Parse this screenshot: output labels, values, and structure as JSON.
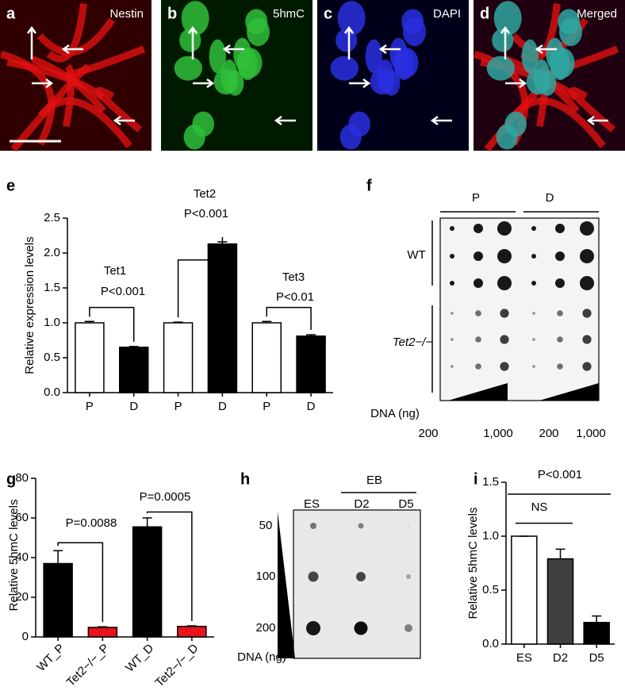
{
  "images": [
    {
      "letter": "a",
      "label": "Nestin"
    },
    {
      "letter": "b",
      "label": "5hmC"
    },
    {
      "letter": "c",
      "label": "DAPI"
    },
    {
      "letter": "d",
      "label": "Merged"
    }
  ],
  "blots": {
    "f": {
      "letter": "f",
      "groups": [
        "P",
        "D"
      ],
      "rows": [
        "WT",
        "Tet2−/−"
      ],
      "axis_label": "DNA (ng)",
      "amounts": [
        "200",
        "1,000",
        "200",
        "1,000"
      ]
    },
    "h": {
      "letter": "h",
      "group": "EB",
      "lanes": [
        "ES",
        "D2",
        "D5"
      ],
      "amounts": [
        "50",
        "100",
        "200"
      ],
      "axis_label": "DNA (ng)"
    }
  },
  "chart_data": [
    {
      "type": "bar",
      "panel": "e",
      "ylabel": "Relative expression levels",
      "categories": [
        "P",
        "D",
        "P",
        "D",
        "P",
        "D"
      ],
      "values": [
        1.0,
        0.65,
        1.0,
        2.13,
        1.0,
        0.81
      ],
      "errors": [
        0.02,
        0.01,
        0.01,
        0.03,
        0.02,
        0.02
      ],
      "colors": [
        "#ffffff",
        "#000000",
        "#ffffff",
        "#000000",
        "#ffffff",
        "#000000"
      ],
      "ylim": [
        0,
        2.5
      ],
      "yticks": [
        {
          "value": 0,
          "label": "0.0"
        },
        0.5,
        {
          "value": 1,
          "label": "1.0"
        },
        1.5,
        {
          "value": 2,
          "label": "2.0"
        },
        2.5
      ],
      "annotations": [
        {
          "title": "Tet1",
          "text": "P<0.001"
        },
        {
          "title": "Tet2",
          "text": "P<0.001"
        },
        {
          "title": "Tet3",
          "text": "P<0.01"
        }
      ]
    },
    {
      "type": "bar",
      "panel": "g",
      "ylabel": "Relative 5hmC levels",
      "categories": [
        "WT_P",
        "Tet2−/−_P",
        "WT_D",
        "Tet2−/−_D"
      ],
      "values": [
        37,
        4.8,
        55.5,
        5.3
      ],
      "errors": [
        6.5,
        0.3,
        4.5,
        0.3
      ],
      "colors": [
        "#000000",
        "#e8141b",
        "#000000",
        "#e8141b"
      ],
      "ylim": [
        0,
        80
      ],
      "yticks": [
        0,
        20,
        40,
        60,
        80
      ],
      "annotations": [
        {
          "text": "P=0.0088"
        },
        {
          "text": "P=0.0005"
        }
      ]
    },
    {
      "type": "bar",
      "panel": "i",
      "ylabel": "Relative 5hmC levels",
      "categories": [
        "ES",
        "D2",
        "D5"
      ],
      "values": [
        1.0,
        0.79,
        0.2
      ],
      "errors": [
        0,
        0.09,
        0.06
      ],
      "colors": [
        "#ffffff",
        "#404040",
        "#000000"
      ],
      "ylim": [
        0,
        1.5
      ],
      "yticks": [
        {
          "value": 0,
          "label": "0.0"
        },
        0.5,
        {
          "value": 1,
          "label": "1.0"
        },
        1.5
      ],
      "annotations": [
        {
          "text": "P<0.001"
        },
        {
          "text": "NS"
        }
      ]
    }
  ]
}
